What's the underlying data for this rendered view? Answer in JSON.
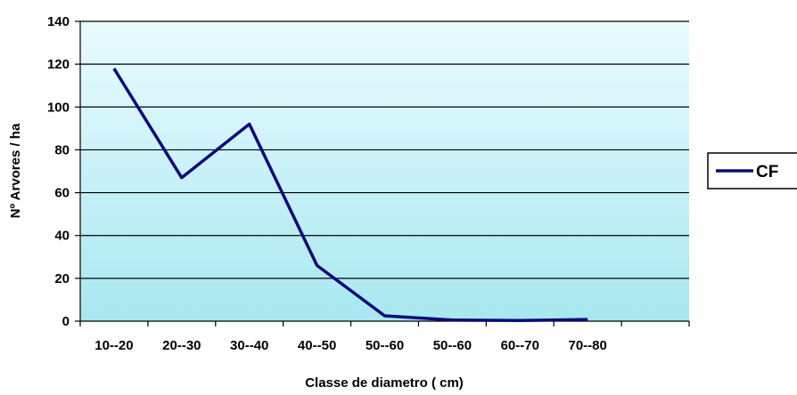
{
  "chart_data": {
    "type": "line",
    "categories": [
      "10--20",
      "20--30",
      "30--40",
      "40--50",
      "50--60",
      "50--60",
      "60--70",
      "70--80"
    ],
    "series": [
      {
        "name": "CF",
        "values": [
          118,
          67,
          92,
          26,
          2.5,
          0.5,
          0.3,
          0.8
        ]
      }
    ],
    "xlabel": "Classe de diametro ( cm)",
    "ylabel": "Nº Arvores / ha",
    "ylim": [
      0,
      140
    ],
    "yticks": [
      0,
      20,
      40,
      60,
      80,
      100,
      120,
      140
    ],
    "grid": true,
    "legend": "right",
    "colors": {
      "line": "#0b0b7a",
      "plot_background_top": "#eafbff",
      "plot_background_bottom": "#a8e8f0",
      "grid": "#000000"
    }
  }
}
